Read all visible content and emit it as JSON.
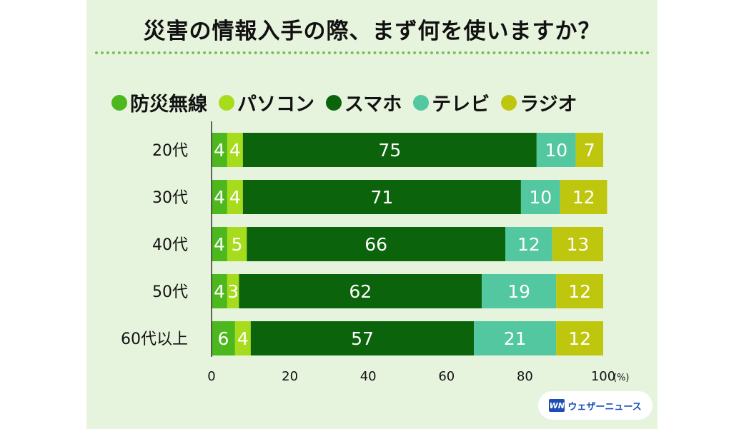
{
  "title": "災害の情報入手の際、まず何を使いますか？",
  "logo": {
    "mark": "WN",
    "text": "ウェザーニュース"
  },
  "legend": [
    {
      "label": "防災無線",
      "color": "#4cb81e"
    },
    {
      "label": "パソコン",
      "color": "#a6dc1c"
    },
    {
      "label": "スマホ",
      "color": "#0b640b"
    },
    {
      "label": "テレビ",
      "color": "#52c7a0"
    },
    {
      "label": "ラジオ",
      "color": "#bfc60e"
    }
  ],
  "chart_data": {
    "type": "bar",
    "orientation": "horizontal",
    "stacked": true,
    "categories": [
      "20代",
      "30代",
      "40代",
      "50代",
      "60代以上"
    ],
    "series": [
      {
        "name": "防災無線",
        "color": "#4cb81e",
        "values": [
          4,
          4,
          4,
          4,
          6
        ]
      },
      {
        "name": "パソコン",
        "color": "#a6dc1c",
        "values": [
          4,
          4,
          5,
          3,
          4
        ]
      },
      {
        "name": "スマホ",
        "color": "#0b640b",
        "values": [
          75,
          71,
          66,
          62,
          57
        ]
      },
      {
        "name": "テレビ",
        "color": "#52c7a0",
        "values": [
          10,
          10,
          12,
          19,
          21
        ]
      },
      {
        "name": "ラジオ",
        "color": "#bfc60e",
        "values": [
          7,
          12,
          13,
          12,
          12
        ]
      }
    ],
    "xlim": [
      0,
      100
    ],
    "xticks": [
      "0",
      "20",
      "40",
      "60",
      "80",
      "100"
    ],
    "unit": "(%)",
    "legend_position": "top",
    "grid": false
  }
}
